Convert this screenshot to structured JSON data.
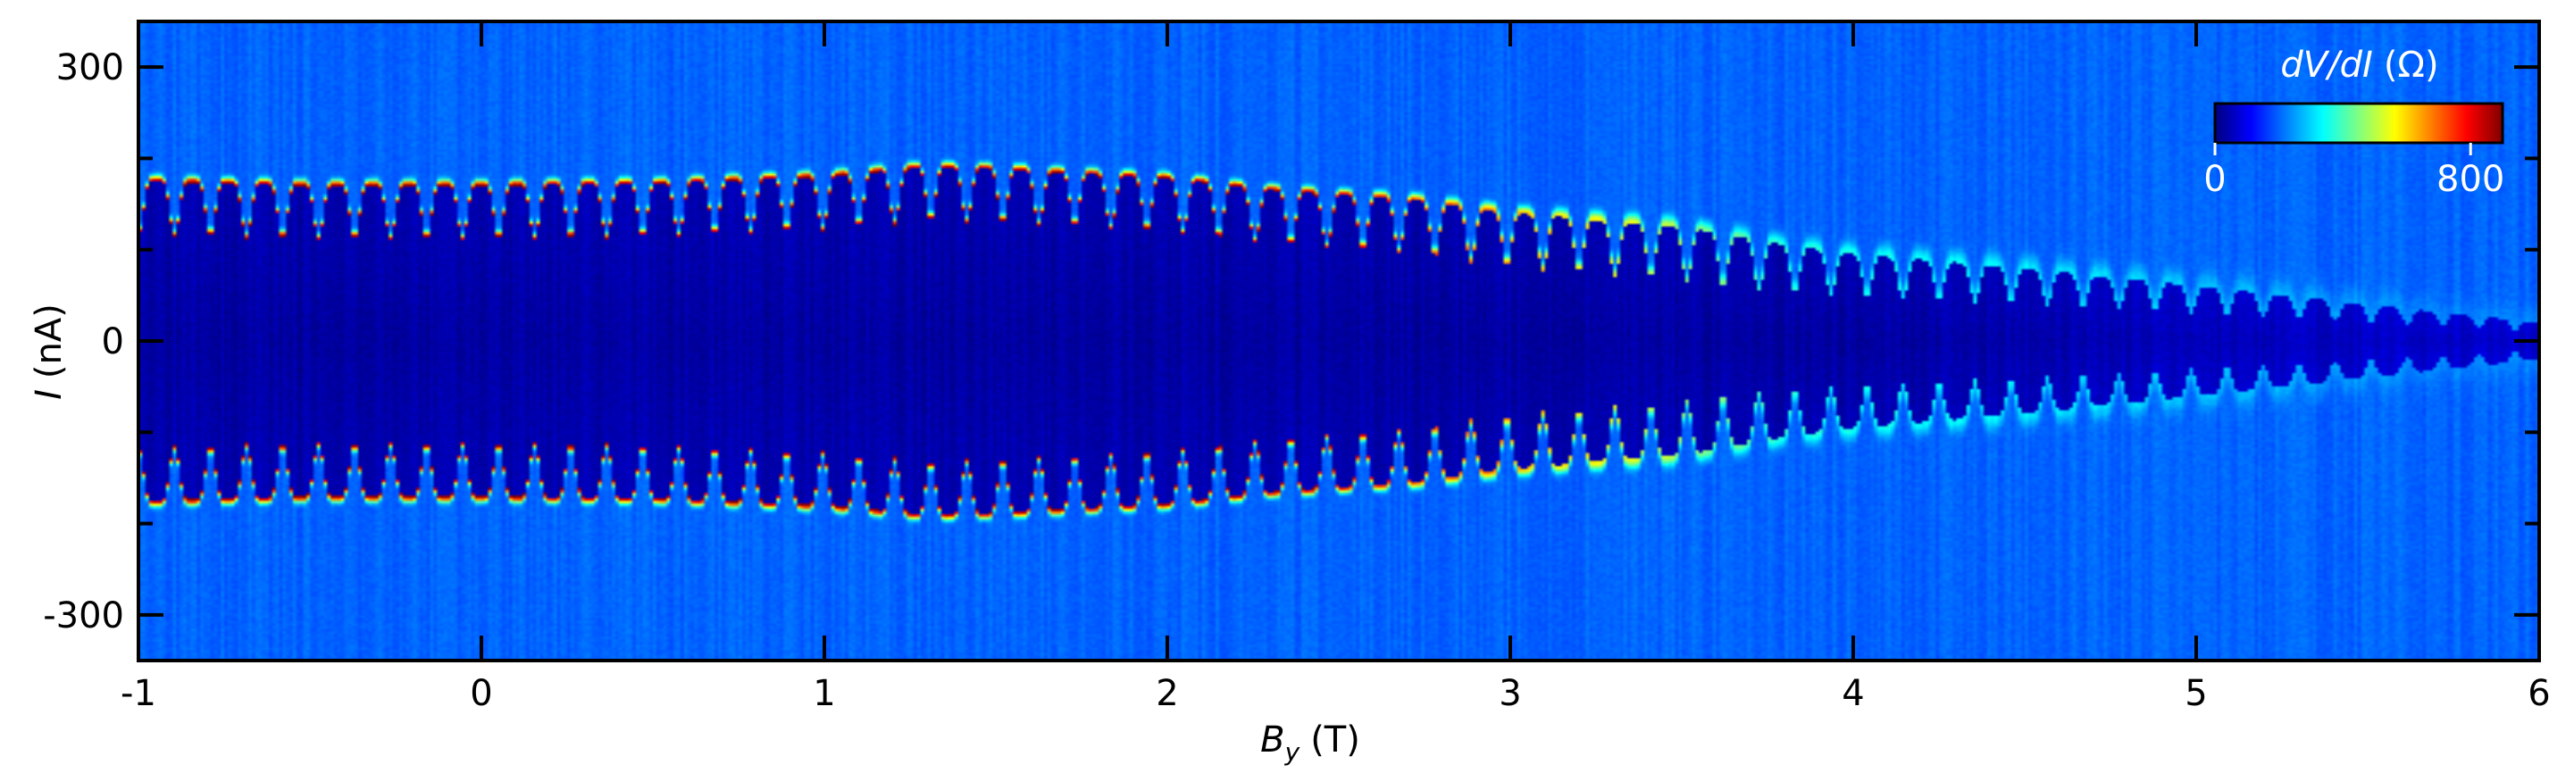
{
  "chart_data": {
    "type": "heatmap",
    "xlabel": {
      "symbol": "B",
      "subscript": "y",
      "unit": "(T)"
    },
    "ylabel": {
      "symbol": "I",
      "unit": "(nA)"
    },
    "xlim": [
      -1,
      6
    ],
    "ylim": [
      -350,
      350
    ],
    "xticks": [
      -1,
      0,
      1,
      2,
      3,
      4,
      5,
      6
    ],
    "xtick_labels": [
      "-1",
      "0",
      "1",
      "2",
      "3",
      "4",
      "5",
      "6"
    ],
    "yticks": [
      -300,
      0,
      300
    ],
    "ytick_labels": [
      "-300",
      "0",
      "300"
    ],
    "colorbar": {
      "label_italic": "dV/dI",
      "label_unit": "(Ω)",
      "range": [
        0,
        900
      ],
      "tick_values": [
        0,
        800
      ],
      "tick_labels": [
        "0",
        "800"
      ],
      "colormap": [
        "#00007f",
        "#0000ff",
        "#0080ff",
        "#00ffff",
        "#80ff80",
        "#ffff00",
        "#ff8000",
        "#ff0000",
        "#7f0000"
      ],
      "placement": "top-right inside"
    },
    "background_value_ohm": 200,
    "superconducting_value_ohm": 30,
    "switching_current_nA": [
      {
        "B": -1.0,
        "Ic": 175
      },
      {
        "B": -0.5,
        "Ic": 170
      },
      {
        "B": 0.0,
        "Ic": 170
      },
      {
        "B": 0.5,
        "Ic": 172
      },
      {
        "B": 1.0,
        "Ic": 180
      },
      {
        "B": 1.3,
        "Ic": 190
      },
      {
        "B": 1.5,
        "Ic": 188
      },
      {
        "B": 1.8,
        "Ic": 182
      },
      {
        "B": 2.0,
        "Ic": 178
      },
      {
        "B": 2.3,
        "Ic": 165
      },
      {
        "B": 2.7,
        "Ic": 155
      },
      {
        "B": 3.0,
        "Ic": 140
      },
      {
        "B": 3.5,
        "Ic": 125
      },
      {
        "B": 3.8,
        "Ic": 105
      },
      {
        "B": 4.0,
        "Ic": 95
      },
      {
        "B": 4.5,
        "Ic": 80
      },
      {
        "B": 5.0,
        "Ic": 60
      },
      {
        "B": 5.5,
        "Ic": 40
      },
      {
        "B": 6.0,
        "Ic": 20
      }
    ],
    "oscillation_period_T": 0.105,
    "oscillation_depth_nA": 60
  }
}
